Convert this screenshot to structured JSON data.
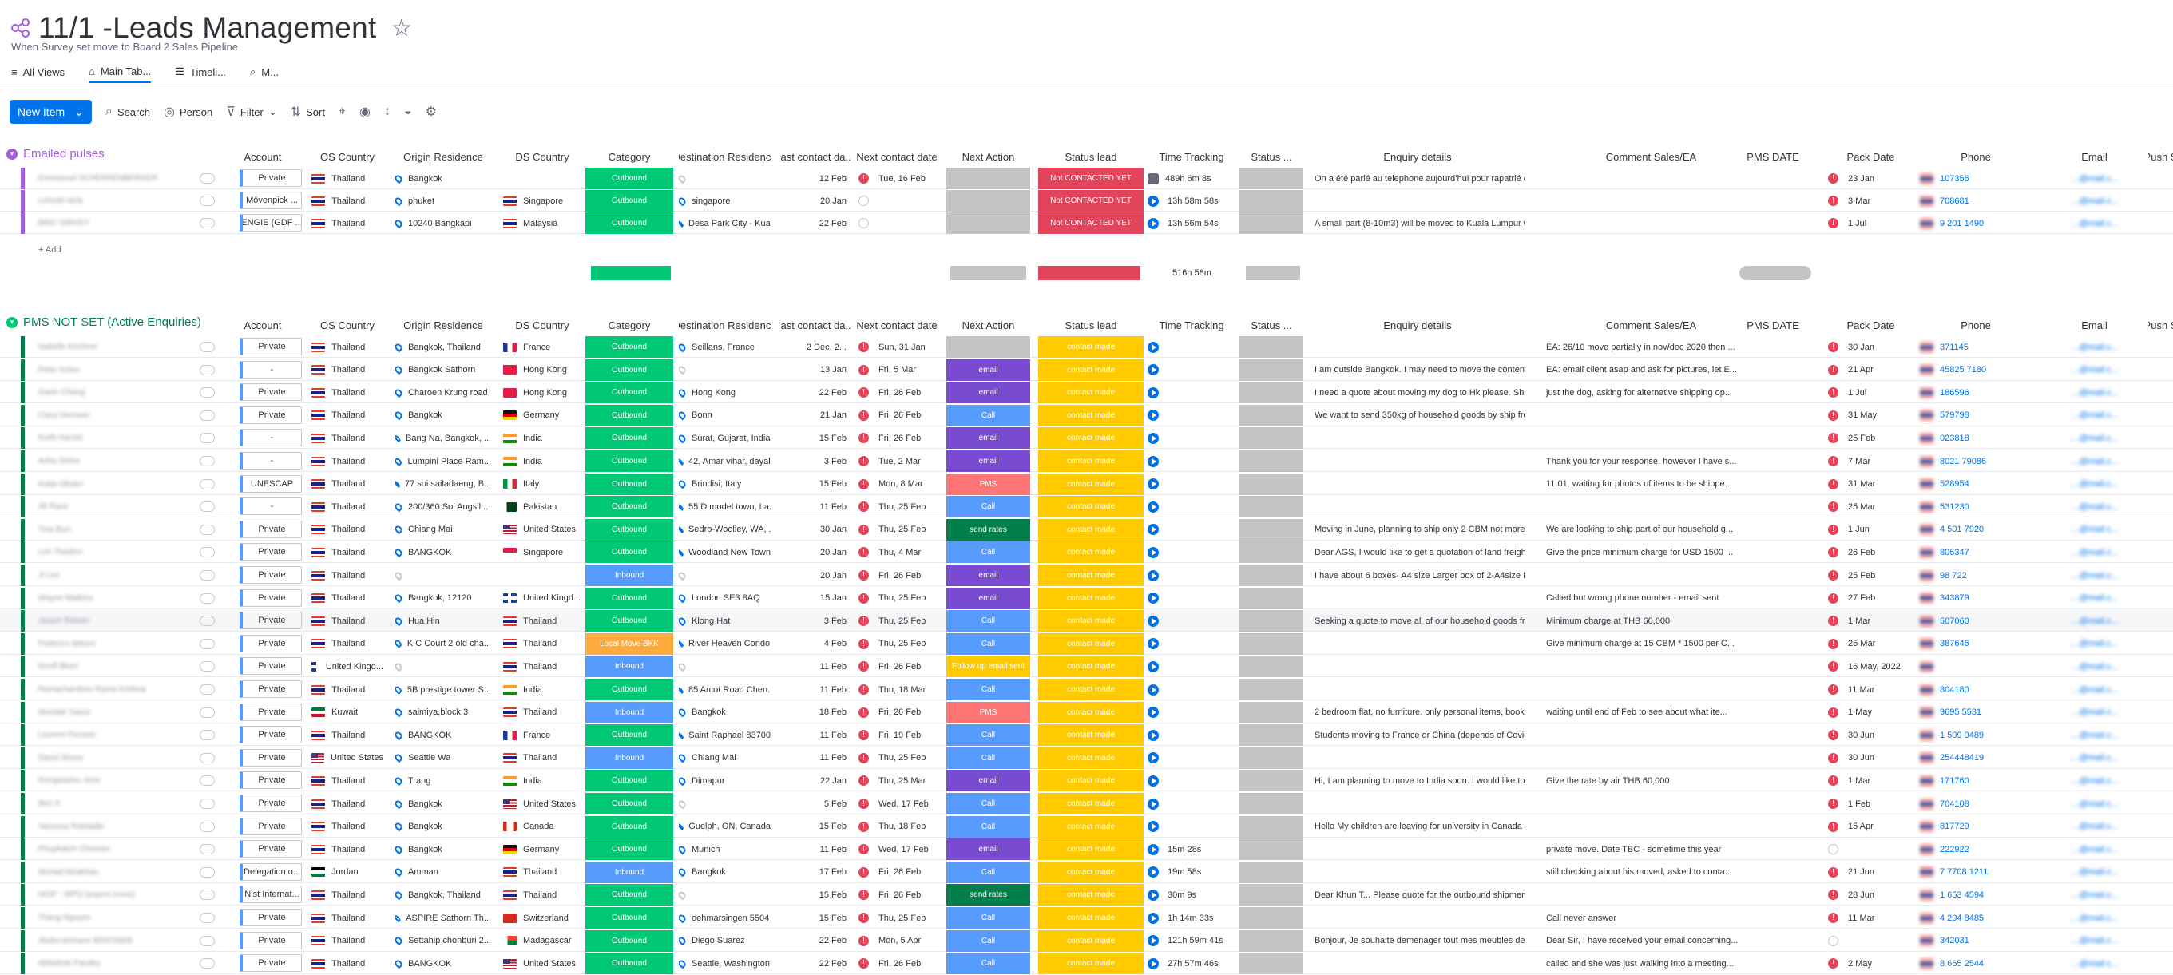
{
  "header": {
    "title": "11/1 -Leads Management",
    "subtitle": "When Survey set move to Board 2 Sales Pipeline",
    "views": [
      "All Views",
      "Main Tab...",
      "Timeli...",
      "M..."
    ]
  },
  "toolbar": {
    "new_item": "New Item",
    "search": "Search",
    "person": "Person",
    "filter": "Filter",
    "sort": "Sort"
  },
  "columns": [
    "Account",
    "OS Country",
    "Origin Residence",
    "DS Country",
    "Category",
    "Destination Residence",
    "last contact da...",
    "Next contact date",
    "Next Action",
    "Status lead",
    "Time Tracking",
    "Status ...",
    "Enquiry details",
    "Comment Sales/EA",
    "PMS DATE",
    "Pack Date",
    "Phone",
    "Email",
    "Push S"
  ],
  "groups": [
    {
      "title": "Emailed pulses",
      "color": "#a25ddc",
      "rows": [
        [
          "Emmanuel SCHERRENBERGER",
          [
            "Private",
            "Thailand",
            "thai",
            "Bangkok",
            "",
            "",
            "Outbound",
            "",
            "12 Feb",
            "Tue, 16 Feb",
            "",
            "Not CONTACTED YET",
            "489h 6m 8s",
            "",
            "On a été parlé au telephone aujourd’hui pour rapatrié d...",
            "",
            "",
            "23 Jan",
            "107356",
            "…achoff...",
            ""
          ]
        ],
        [
          "Loheah tarla",
          [
            "Mövenpick ...",
            "Thailand",
            "thai",
            "phuket",
            "Singapore",
            "sg",
            "Outbound",
            "singapore",
            "20 Jan",
            "",
            "",
            "Not CONTACTED YET",
            "13h 58m 58s",
            "",
            "",
            "",
            "",
            "3 Mar",
            "708681",
            "…81@...",
            ""
          ]
        ],
        [
          "BRIC GRIVEY",
          [
            "ENGIE (GDF ...",
            "Thailand",
            "thai",
            "10240 Bangkapi",
            "Malaysia",
            "malaysia",
            "Outbound",
            "Desa Park City - Kual...",
            "22 Feb",
            "",
            "",
            "Not CONTACTED YET",
            "13h 56m 54s",
            "",
            "A small part (8-10m3) will be moved to Kuala Lumpur whi...",
            "",
            "",
            "1 Jul",
            "9 201 1490",
            "…ngie.c...",
            ""
          ]
        ]
      ]
    },
    {
      "title": "PMS NOT SET (Active Enquiries)",
      "color": "#00c875",
      "rows": []
    }
  ],
  "summary": {
    "time": "516h 58m"
  },
  "add_label": "+ Add",
  "active_rows": [
    [
      "Isabelle Kirchner",
      "Private",
      "Thailand",
      "Bangkok, Thailand",
      "France",
      "France",
      "Outbound",
      "Seillans, France",
      "2 Dec, 2...",
      "Sun, 31 Jan",
      "",
      "contact made",
      "",
      "",
      "",
      "EA: 26/10 move partially in nov/dec 2020 then ...",
      "",
      "30 Jan",
      "371145"
    ],
    [
      "Peter Kirlen",
      "-",
      "Thailand",
      "Bangkok Sathorn",
      "Hong Kong",
      "Hong Kong",
      "Outbound",
      "",
      "13 Jan",
      "Fri, 5 Mar",
      "email",
      "contact made",
      "",
      "",
      "I am outside Bangkok. I may need to move the contents o...",
      "EA: email client asap and ask for pictures, let E...",
      "",
      "21 Apr",
      "45825 7180"
    ],
    [
      "Gavin Chang",
      "Private",
      "Thailand",
      "Charoen Krung road",
      "Hong Kong",
      "Hong Kong",
      "Outbound",
      "Hong Kong",
      "22 Feb",
      "Fri, 26 Feb",
      "email",
      "contact made",
      "",
      "",
      "I need a quote about moving my dog to Hk please. She is ...",
      "just the dog, asking for alternative shipping op...",
      "",
      "1 Jul",
      "186596"
    ],
    [
      "Clara Vermeer",
      "Private",
      "Thailand",
      "Bangkok",
      "Germany",
      "Germany",
      "Outbound",
      "Bonn",
      "21 Jan",
      "Fri, 26 Feb",
      "Call",
      "contact made",
      "",
      "",
      "We want to send 350kg of household goods by ship from ...",
      "",
      "",
      "31 May",
      "579798"
    ],
    [
      "Keith Harold",
      "-",
      "Thailand",
      "Bang Na, Bangkok, ...",
      "India",
      "India",
      "Outbound",
      "Surat, Gujarat, India",
      "15 Feb",
      "Fri, 26 Feb",
      "email",
      "contact made",
      "",
      "",
      "",
      "",
      "",
      "25 Feb",
      "023818"
    ],
    [
      "Asha Sinha",
      "-",
      "Thailand",
      "Lumpini Place Ram...",
      "India",
      "India",
      "Outbound",
      "42, Amar vihar, dayal...",
      "3 Feb",
      "Tue, 2 Mar",
      "email",
      "contact made",
      "",
      "",
      "",
      "Thank you for your response, however I have s...",
      "",
      "7 Mar",
      "8021 79086"
    ],
    [
      "Katia Olivieri",
      "UNESCAP",
      "Thailand",
      "77 soi sailadaeng, B...",
      "Italy",
      "Italy",
      "Outbound",
      "Brindisi, Italy",
      "15 Feb",
      "Mon, 8 Mar",
      "PMS",
      "contact made",
      "",
      "",
      "",
      "11.01. waiting for photos of items to be shippe...",
      "",
      "31 Mar",
      "528954"
    ],
    [
      "Ali Raza",
      "-",
      "Thailand",
      "200/360 Soi Angsil...",
      "Pakistan",
      "Pakistan",
      "Outbound",
      "55 D model town, La...",
      "11 Feb",
      "Thu, 25 Feb",
      "Call",
      "contact made",
      "",
      "",
      "",
      "",
      "",
      "25 Mar",
      "531230"
    ],
    [
      "Tina Burt",
      "Private",
      "Thailand",
      "Chiang Mai",
      "United States",
      "United States",
      "Outbound",
      "Sedro-Woolley, WA, ...",
      "30 Jan",
      "Thu, 25 Feb",
      "send rates",
      "contact made",
      "",
      "",
      "Moving in June, planning to ship only 2 CBM not more",
      "We are looking to ship part of our household g...",
      "",
      "1 Jun",
      "4 501 7920"
    ],
    [
      "Lim Thadom",
      "Private",
      "Thailand",
      "BANGKOK",
      "Singapore",
      "Singapore",
      "Outbound",
      "Woodland New Town",
      "20 Jan",
      "Thu, 4 Mar",
      "Call",
      "contact made",
      "",
      "",
      "Dear AGS, I would like to get a quotation of land freight o...",
      "Give the price minimum charge for USD 1500 ...",
      "",
      "26 Feb",
      "806347"
    ],
    [
      "Ji Lee",
      "Private",
      "Thailand",
      "",
      "",
      "",
      "Inbound",
      "",
      "20 Jan",
      "Fri, 26 Feb",
      "email",
      "contact made",
      "",
      "",
      "I have about 6 boxes- A4 size Larger box of 2-A4size Not ...",
      "",
      "",
      "25 Feb",
      "98 722"
    ],
    [
      "Wayne Watkins",
      "Private",
      "Thailand",
      "Bangkok, 12120",
      "United Kingd...",
      "United Kingdom",
      "Outbound",
      "London SE3 8AQ",
      "15 Jan",
      "Thu, 25 Feb",
      "email",
      "contact made",
      "",
      "",
      "",
      "Called but wrong phone number - email sent",
      "",
      "27 Feb",
      "343879"
    ],
    [
      "Jasper Balaan",
      "Private",
      "Thailand",
      "Hua Hin",
      "Thailand",
      "Thailand",
      "Outbound",
      "Klong Hat",
      "3 Feb",
      "Thu, 25 Feb",
      "Call",
      "contact made",
      "",
      "",
      "Seeking a quote to move all of our household goods from...",
      "Minimum charge at THB 60,000",
      "",
      "1 Mar",
      "507060"
    ],
    [
      "Federico deboni",
      "Private",
      "Thailand",
      "K C Court 2 old cha...",
      "Thailand",
      "Thailand",
      "Local Move BKK",
      "River Heaven Condo ...",
      "4 Feb",
      "Thu, 25 Feb",
      "Call",
      "contact made",
      "",
      "",
      "",
      "Give minimum charge at 15 CBM * 1500 per C...",
      "",
      "25 Mar",
      "387646"
    ],
    [
      "Geoff Blum",
      "Private",
      "United Kingd...",
      "",
      "Thailand",
      "Thailand",
      "Inbound",
      "",
      "11 Feb",
      "Fri, 26 Feb",
      "Follow up email sent",
      "contact made",
      "",
      "",
      "",
      "",
      "",
      "16 May, 2022",
      ""
    ],
    [
      "Ramachandran Rama Krishna",
      "Private",
      "Thailand",
      "5B prestige tower S...",
      "India",
      "India",
      "Outbound",
      "85 Arcot Road Chen...",
      "11 Feb",
      "Thu, 18 Mar",
      "Call",
      "contact made",
      "",
      "",
      "",
      "",
      "",
      "11 Mar",
      "804180"
    ],
    [
      "Mondair Saoul",
      "Private",
      "Kuwait",
      "salmiya,block 3",
      "Thailand",
      "Thailand",
      "Inbound",
      "Bangkok",
      "18 Feb",
      "Fri, 26 Feb",
      "PMS",
      "contact made",
      "",
      "",
      "2 bedroom flat, no furniture. only personal items, books, c...",
      "waiting until end of Feb to see about what ite...",
      "",
      "1 May",
      "9695 5531"
    ],
    [
      "Laurent Picosse",
      "Private",
      "Thailand",
      "BANGKOK",
      "France",
      "France",
      "Outbound",
      "Saint Raphael 83700",
      "11 Feb",
      "Fri, 19 Feb",
      "Call",
      "contact made",
      "",
      "",
      "Students moving to France or China (depends of Covid) b...",
      "",
      "",
      "30 Jun",
      "1 509 0489"
    ],
    [
      "David Simon",
      "Private",
      "United States",
      "Seattle Wa",
      "Thailand",
      "Thailand",
      "Inbound",
      "Chiang Mai",
      "11 Feb",
      "Thu, 25 Feb",
      "Call",
      "contact made",
      "",
      "",
      "",
      "",
      "",
      "30 Jun",
      "254448419"
    ],
    [
      "Rongasetsu Jenn",
      "Private",
      "Thailand",
      "Trang",
      "India",
      "India",
      "Outbound",
      "Dimapur",
      "22 Jan",
      "Thu, 25 Mar",
      "email",
      "contact made",
      "",
      "",
      "Hi, I am planning to move to India soon. I would like to kn...",
      "Give the rate by air THB 60,000",
      "",
      "1 Mar",
      "171760"
    ],
    [
      "Ben S",
      "Private",
      "Thailand",
      "Bangkok",
      "United States",
      "United States",
      "Outbound",
      "",
      "5 Feb",
      "Wed, 17 Feb",
      "Call",
      "contact made",
      "",
      "",
      "",
      "",
      "",
      "1 Feb",
      "704108"
    ],
    [
      "Vanessa Robitaille",
      "Private",
      "Thailand",
      "Bangkok",
      "Canada",
      "Canada",
      "Outbound",
      "Guelph, ON, Canada",
      "15 Feb",
      "Thu, 18 Feb",
      "Call",
      "contact made",
      "",
      "",
      "Hello My children are leaving for university in Canada and...",
      "",
      "",
      "15 Apr",
      "817729"
    ],
    [
      "Phuphatch Chimsen",
      "Private",
      "Thailand",
      "Bangkok",
      "Germany",
      "Germany",
      "Outbound",
      "Munich",
      "11 Feb",
      "Wed, 17 Feb",
      "email",
      "contact made",
      "15m 28s",
      "",
      "",
      "private move. Date TBC - sometime this year",
      "",
      "",
      "222922"
    ],
    [
      "Ahmad Alnahhas",
      "Delegation o...",
      "Jordan",
      "Amman",
      "Thailand",
      "Thailand",
      "Inbound",
      "Bangkok",
      "17 Feb",
      "Fri, 26 Feb",
      "Call",
      "contact made",
      "19m 58s",
      "",
      "",
      "still checking about his moved, asked to conta...",
      "",
      "21 Jun",
      "7 7708 1211"
    ],
    [
      "NISP - IRPO (export move)",
      "Nist Internat...",
      "Thailand",
      "Bangkok, Thailand",
      "Thailand",
      "Thailand",
      "Outbound",
      "",
      "15 Feb",
      "Fri, 26 Feb",
      "send rates",
      "contact made",
      "30m 9s",
      "",
      "Dear Khun T... Please quote for the outbound shipmen...",
      "",
      "",
      "28 Jun",
      "1 653 4594"
    ],
    [
      "Thang Nguyen",
      "Private",
      "Thailand",
      "ASPIRE Sathorn Th...",
      "Switzerland",
      "Switzerland",
      "Outbound",
      "oehmarsingen 5504",
      "15 Feb",
      "Thu, 25 Feb",
      "Call",
      "contact made",
      "1h 14m 33s",
      "",
      "",
      "Call never answer",
      "",
      "11 Mar",
      "4 294 8485"
    ],
    [
      "Abderrahmane BENTAIEB",
      "Private",
      "Thailand",
      "Settahip chonburi 2...",
      "Madagascar",
      "Madagascar",
      "Outbound",
      "Diego Suarez",
      "22 Feb",
      "Mon, 5 Apr",
      "Call",
      "contact made",
      "121h 59m 41s",
      "",
      "Bonjour, Je souhaite demenager tout mes meubles de m...",
      "Dear Sir, I have received your email concerning...",
      "",
      "",
      "342031"
    ],
    [
      "Abhishek Pandey",
      "Private",
      "Thailand",
      "BANGKOK",
      "United States",
      "United States",
      "Outbound",
      "Seattle, Washington",
      "22 Feb",
      "Fri, 26 Feb",
      "Call",
      "contact made",
      "27h 57m 46s",
      "",
      "",
      "called and she was just walking into a meeting...",
      "",
      "2 May",
      "8 665 2544"
    ]
  ],
  "colors": {
    "accent": "#0073ea",
    "outbound": "#00c875",
    "inbound": "#579bfc",
    "not_contacted": "#e2445c",
    "contact_made": "#ffcb00",
    "email": "#784bd1",
    "call": "#579bfc",
    "send_rates": "#037f4c",
    "pms": "#ff7575",
    "domestic": "#ff642e",
    "local_move": "#fdab3d",
    "follow_up": "#ffcb00"
  }
}
